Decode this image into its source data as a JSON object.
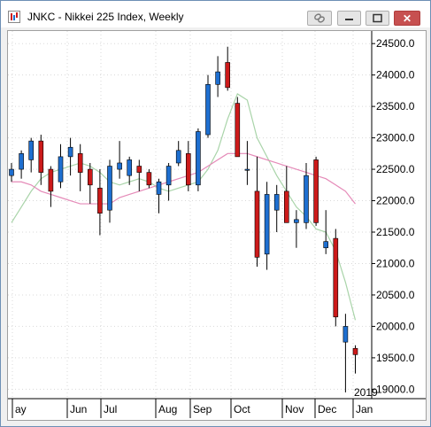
{
  "window": {
    "title": "JNKC - Nikkei 225 Index, Weekly",
    "close_glyph": "✕",
    "icons": [
      "chart-app-icon",
      "link-icon",
      "minimize-icon",
      "maximize-icon",
      "close-icon"
    ]
  },
  "chart_data": {
    "type": "candlestick",
    "title": "JNKC - Nikkei 225 Index, Weekly",
    "year_label": "2019",
    "ylim": [
      18850,
      24700
    ],
    "y_ticks": [
      "24500.0",
      "24000.0",
      "23500.0",
      "23000.0",
      "22500.0",
      "22000.0",
      "21500.0",
      "21000.0",
      "20500.0",
      "20000.0",
      "19500.0",
      "19000.0"
    ],
    "x_labels": [
      "ay",
      "Jun",
      "Jul",
      "Aug",
      "Sep",
      "Oct",
      "Nov",
      "Dec",
      "Jan"
    ],
    "up_color": "#1e6fd0",
    "down_color": "#cc1a1a",
    "fast_ma_color": "#a9d4a9",
    "slow_ma_color": "#e58ab8",
    "candles": [
      {
        "o": 22400,
        "h": 22600,
        "l": 22300,
        "c": 22500
      },
      {
        "o": 22500,
        "h": 22800,
        "l": 22350,
        "c": 22750
      },
      {
        "o": 22650,
        "h": 23000,
        "l": 22450,
        "c": 22950
      },
      {
        "o": 22950,
        "h": 23050,
        "l": 22250,
        "c": 22450
      },
      {
        "o": 22500,
        "h": 22550,
        "l": 21900,
        "c": 22150
      },
      {
        "o": 22300,
        "h": 22900,
        "l": 22200,
        "c": 22700
      },
      {
        "o": 22700,
        "h": 23000,
        "l": 22400,
        "c": 22850
      },
      {
        "o": 22750,
        "h": 22900,
        "l": 22150,
        "c": 22450
      },
      {
        "o": 22500,
        "h": 22600,
        "l": 21950,
        "c": 22250
      },
      {
        "o": 22200,
        "h": 22500,
        "l": 21450,
        "c": 21800
      },
      {
        "o": 21850,
        "h": 22650,
        "l": 21650,
        "c": 22550
      },
      {
        "o": 22500,
        "h": 22950,
        "l": 22350,
        "c": 22600
      },
      {
        "o": 22400,
        "h": 22700,
        "l": 22250,
        "c": 22650
      },
      {
        "o": 22550,
        "h": 22650,
        "l": 22150,
        "c": 22450
      },
      {
        "o": 22450,
        "h": 22500,
        "l": 22200,
        "c": 22250
      },
      {
        "o": 22100,
        "h": 22350,
        "l": 21800,
        "c": 22300
      },
      {
        "o": 22250,
        "h": 22600,
        "l": 22000,
        "c": 22550
      },
      {
        "o": 22600,
        "h": 22950,
        "l": 22550,
        "c": 22800
      },
      {
        "o": 22750,
        "h": 22950,
        "l": 22150,
        "c": 22250
      },
      {
        "o": 22250,
        "h": 23150,
        "l": 22150,
        "c": 23100
      },
      {
        "o": 23050,
        "h": 24000,
        "l": 23000,
        "c": 23850
      },
      {
        "o": 23850,
        "h": 24300,
        "l": 23650,
        "c": 24050
      },
      {
        "o": 24200,
        "h": 24450,
        "l": 23750,
        "c": 23800
      },
      {
        "o": 23550,
        "h": 23650,
        "l": 22700,
        "c": 22700
      },
      {
        "o": 22500,
        "h": 22950,
        "l": 22250,
        "c": 22500
      },
      {
        "o": 22150,
        "h": 22700,
        "l": 20950,
        "c": 21100
      },
      {
        "o": 21150,
        "h": 22300,
        "l": 20900,
        "c": 22100
      },
      {
        "o": 21850,
        "h": 22250,
        "l": 21500,
        "c": 22100
      },
      {
        "o": 22150,
        "h": 22550,
        "l": 21650,
        "c": 21650
      },
      {
        "o": 21650,
        "h": 21850,
        "l": 21250,
        "c": 21700
      },
      {
        "o": 21650,
        "h": 22600,
        "l": 21550,
        "c": 22400
      },
      {
        "o": 22650,
        "h": 22700,
        "l": 21600,
        "c": 21650
      },
      {
        "o": 21250,
        "h": 21850,
        "l": 21150,
        "c": 21350
      },
      {
        "o": 21400,
        "h": 21550,
        "l": 20000,
        "c": 20150
      },
      {
        "o": 19750,
        "h": 20200,
        "l": 18950,
        "c": 20000
      },
      {
        "o": 19650,
        "h": 19700,
        "l": 19250,
        "c": 19550
      }
    ],
    "fast_ma": [
      21650,
      21900,
      22150,
      22350,
      22450,
      22500,
      22550,
      22600,
      22550,
      22450,
      22300,
      22250,
      22300,
      22350,
      22300,
      22200,
      22150,
      22200,
      22250,
      22300,
      22500,
      22800,
      23300,
      23700,
      23600,
      23000,
      22700,
      22400,
      22150,
      21900,
      21750,
      21550,
      21500,
      21200,
      20700,
      20100
    ],
    "slow_ma": [
      22300,
      22300,
      22250,
      22150,
      22100,
      22050,
      22000,
      21950,
      21950,
      21950,
      21950,
      22050,
      22100,
      22150,
      22200,
      22250,
      22300,
      22350,
      22400,
      22450,
      22550,
      22650,
      22750,
      22750,
      22750,
      22700,
      22650,
      22600,
      22550,
      22500,
      22450,
      22400,
      22350,
      22250,
      22150,
      21950
    ]
  }
}
